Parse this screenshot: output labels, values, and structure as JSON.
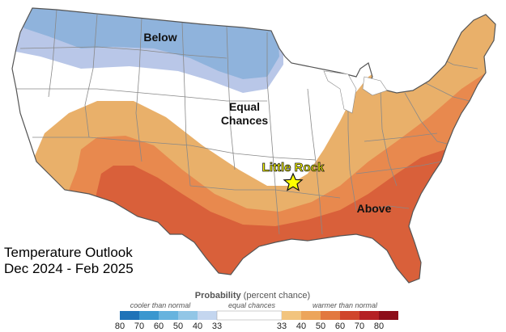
{
  "map": {
    "title_line1": "Temperature Outlook",
    "title_line2": "Dec 2024 - Feb 2025",
    "regions": {
      "below_label": "Below",
      "equal_label_line1": "Equal",
      "equal_label_line2": "Chances",
      "above_label": "Above"
    },
    "city": {
      "name": "Little Rock",
      "marker": "star-icon"
    }
  },
  "legend": {
    "title_bold": "Probability",
    "title_rest": " (percent chance)",
    "cooler_label": "cooler than normal",
    "equal_label": "equal chances",
    "warmer_label": "warmer than normal",
    "cool_ticks": [
      "80",
      "70",
      "60",
      "50",
      "40",
      "33"
    ],
    "warm_ticks": [
      "33",
      "40",
      "50",
      "60",
      "70",
      "80"
    ]
  },
  "colors": {
    "below_dark": "#8fb3dc",
    "below_light": "#b9c7e8",
    "above_33": "#e9b06a",
    "above_40": "#e8894e",
    "above_50": "#d9603a",
    "state_lines": "#888888",
    "outline": "#555555",
    "city_label": "#ffff00",
    "cool_scale": [
      "#1f73b8",
      "#3a97cf",
      "#67b3de",
      "#92c6e6",
      "#c4d6ef"
    ],
    "warm_scale": [
      "#f2c47e",
      "#eca55b",
      "#e2783f",
      "#d0452c",
      "#b52025",
      "#8d0e1a"
    ]
  }
}
